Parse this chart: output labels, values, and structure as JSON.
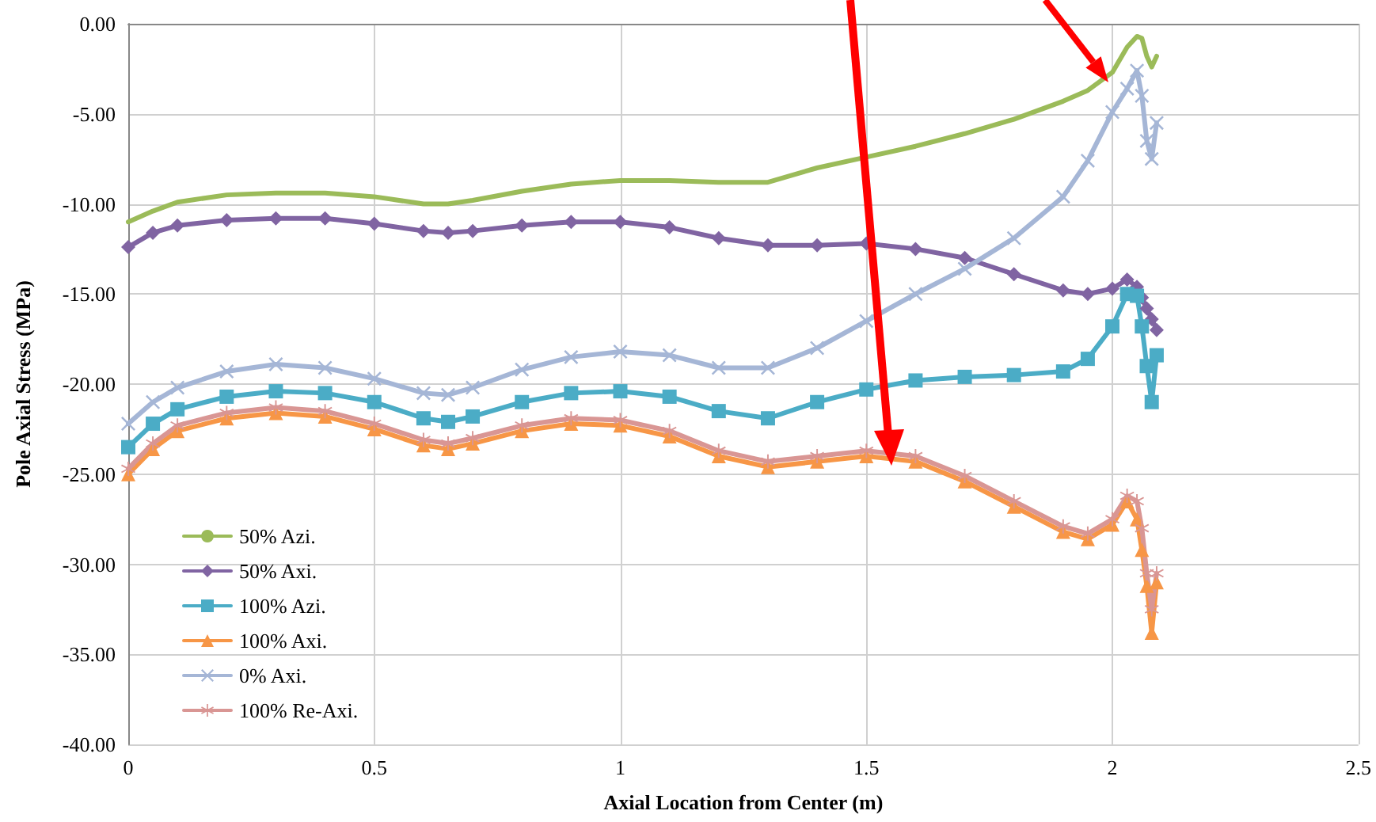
{
  "chart_data": {
    "type": "line",
    "xlabel": "Axial Location from Center (m)",
    "ylabel": "Pole Axial Stress (MPa)",
    "x": [
      0,
      0.05,
      0.1,
      0.2,
      0.3,
      0.4,
      0.5,
      0.6,
      0.65,
      0.7,
      0.8,
      0.9,
      1.0,
      1.1,
      1.2,
      1.3,
      1.4,
      1.5,
      1.6,
      1.7,
      1.8,
      1.9,
      1.95,
      2.0,
      2.03,
      2.05,
      2.06,
      2.07,
      2.08,
      2.09
    ],
    "xlim": [
      0,
      2.5
    ],
    "xticks": [
      0,
      0.5,
      1,
      1.5,
      2,
      2.5
    ],
    "ylim": [
      -40,
      0
    ],
    "yticks": [
      {
        "value": -40,
        "label": "-40.00"
      },
      {
        "value": -35,
        "label": "-35.00"
      },
      {
        "value": -30,
        "label": "-30.00"
      },
      {
        "value": -25,
        "label": "-25.00"
      },
      {
        "value": -20,
        "label": "-20.00"
      },
      {
        "value": -15,
        "label": "-15.00"
      },
      {
        "value": -10,
        "label": "-10.00"
      },
      {
        "value": -5,
        "label": "-5.00"
      },
      {
        "value": 0,
        "label": "0.00"
      }
    ],
    "grid": true,
    "legend": "bottom left",
    "line_style": "solid",
    "series": [
      {
        "name": "50% Azi.",
        "color": "#9bbb59",
        "marker": "none",
        "values": [
          -11,
          -10.4,
          -9.9,
          -9.5,
          -9.4,
          -9.4,
          -9.6,
          -10,
          -10,
          -9.8,
          -9.3,
          -8.9,
          -8.7,
          -8.7,
          -8.8,
          -8.8,
          -8.0,
          -7.4,
          -6.8,
          -6.1,
          -5.3,
          -4.3,
          -3.7,
          -2.7,
          -1.3,
          -0.7,
          -0.8,
          -1.8,
          -2.4,
          -1.8
        ]
      },
      {
        "name": "50% Axi.",
        "color": "#8064a2",
        "marker": "diamond",
        "values": [
          -12.4,
          -11.6,
          -11.2,
          -10.9,
          -10.8,
          -10.8,
          -11.1,
          -11.5,
          -11.6,
          -11.5,
          -11.2,
          -11.0,
          -11.0,
          -11.3,
          -11.9,
          -12.3,
          -12.3,
          -12.2,
          -12.5,
          -13.0,
          -13.9,
          -14.8,
          -15.0,
          -14.7,
          -14.2,
          -14.6,
          -15.2,
          -15.8,
          -16.4,
          -17.0
        ]
      },
      {
        "name": "100% Azi.",
        "color": "#4bacc6",
        "marker": "square",
        "values": [
          -23.5,
          -22.2,
          -21.4,
          -20.7,
          -20.4,
          -20.5,
          -21.0,
          -21.9,
          -22.1,
          -21.8,
          -21.0,
          -20.5,
          -20.4,
          -20.7,
          -21.5,
          -21.9,
          -21.0,
          -20.3,
          -19.8,
          -19.6,
          -19.5,
          -19.3,
          -18.6,
          -16.8,
          -15.0,
          -15.1,
          -16.8,
          -19.0,
          -21.0,
          -18.4
        ]
      },
      {
        "name": "100% Axi.",
        "color": "#f79646",
        "marker": "triangle",
        "values": [
          -25,
          -23.6,
          -22.6,
          -21.9,
          -21.6,
          -21.8,
          -22.5,
          -23.4,
          -23.6,
          -23.3,
          -22.6,
          -22.2,
          -22.3,
          -22.9,
          -24.0,
          -24.6,
          -24.3,
          -24.0,
          -24.3,
          -25.4,
          -26.8,
          -28.2,
          -28.6,
          -27.8,
          -26.5,
          -27.5,
          -29.2,
          -31.2,
          -33.8,
          -31.0
        ]
      },
      {
        "name": "0% Axi.",
        "color": "#a5b6d6",
        "marker": "cross",
        "values": [
          -22.2,
          -21.0,
          -20.2,
          -19.3,
          -18.9,
          -19.1,
          -19.7,
          -20.5,
          -20.6,
          -20.2,
          -19.2,
          -18.5,
          -18.2,
          -18.4,
          -19.1,
          -19.1,
          -18.0,
          -16.5,
          -15.0,
          -13.6,
          -11.9,
          -9.6,
          -7.6,
          -4.9,
          -3.6,
          -2.6,
          -4.0,
          -6.5,
          -7.5,
          -5.5
        ]
      },
      {
        "name": "100% Re-Axi.",
        "color": "#d99694",
        "marker": "star",
        "values": [
          -24.7,
          -23.3,
          -22.3,
          -21.6,
          -21.3,
          -21.5,
          -22.2,
          -23.1,
          -23.3,
          -23.0,
          -22.3,
          -21.9,
          -22.0,
          -22.6,
          -23.7,
          -24.3,
          -24.0,
          -23.7,
          -24.0,
          -25.1,
          -26.5,
          -27.9,
          -28.3,
          -27.5,
          -26.2,
          -26.5,
          -28.0,
          -30.5,
          -32.5,
          -30.5
        ]
      }
    ]
  }
}
